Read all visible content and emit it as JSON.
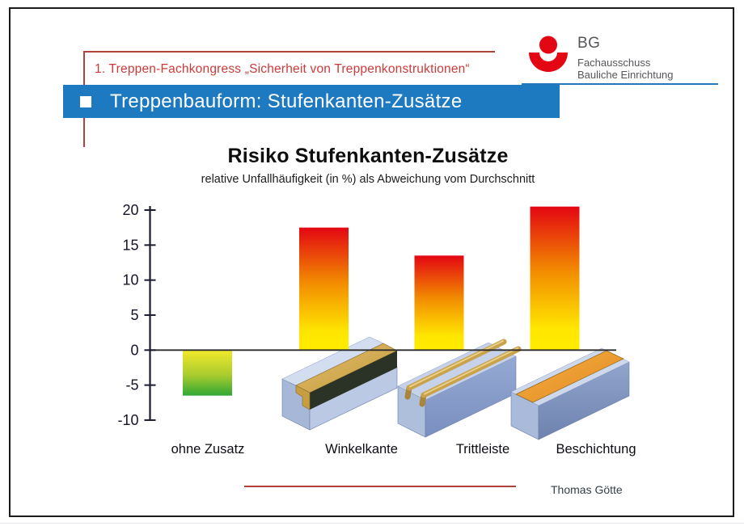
{
  "header": {
    "congress_line": "1. Treppen-Fachkongress „Sicherheit von Treppenkonstruktionen“",
    "logo": {
      "acronym": "BG",
      "line1": "Fachausschuss",
      "line2": "Bauliche Einrichtung"
    }
  },
  "title_bar": {
    "title": "Treppenbauform: Stufenkanten-Zusätze"
  },
  "chart_data": {
    "type": "bar",
    "title": "Risiko Stufenkanten-Zusätze",
    "subtitle": "relative Unfallhäufigkeit (in %) als Abweichung vom Durchschnitt",
    "categories": [
      "ohne Zusatz",
      "Winkelkante",
      "Trittleiste",
      "Beschichtung"
    ],
    "values": [
      -6.5,
      17.5,
      13.5,
      20.5
    ],
    "ylim": [
      -10,
      20
    ],
    "yticks": [
      20,
      15,
      10,
      5,
      0,
      -5,
      -10
    ],
    "xlabel": "",
    "ylabel": "",
    "grid": false,
    "legend": false,
    "layout": {
      "zero_baseline": true,
      "positive_bar_gradient": [
        "#e30613",
        "#f28c00",
        "#ffec00"
      ],
      "negative_bar_gradient": [
        "#f2e92c",
        "#2fa734"
      ]
    }
  },
  "footer": {
    "author": "Thomas Götte"
  },
  "colors": {
    "accent_blue": "#1d79c0",
    "accent_red": "#b2403c",
    "logo_red": "#e30613",
    "text_gray": "#55565a"
  }
}
